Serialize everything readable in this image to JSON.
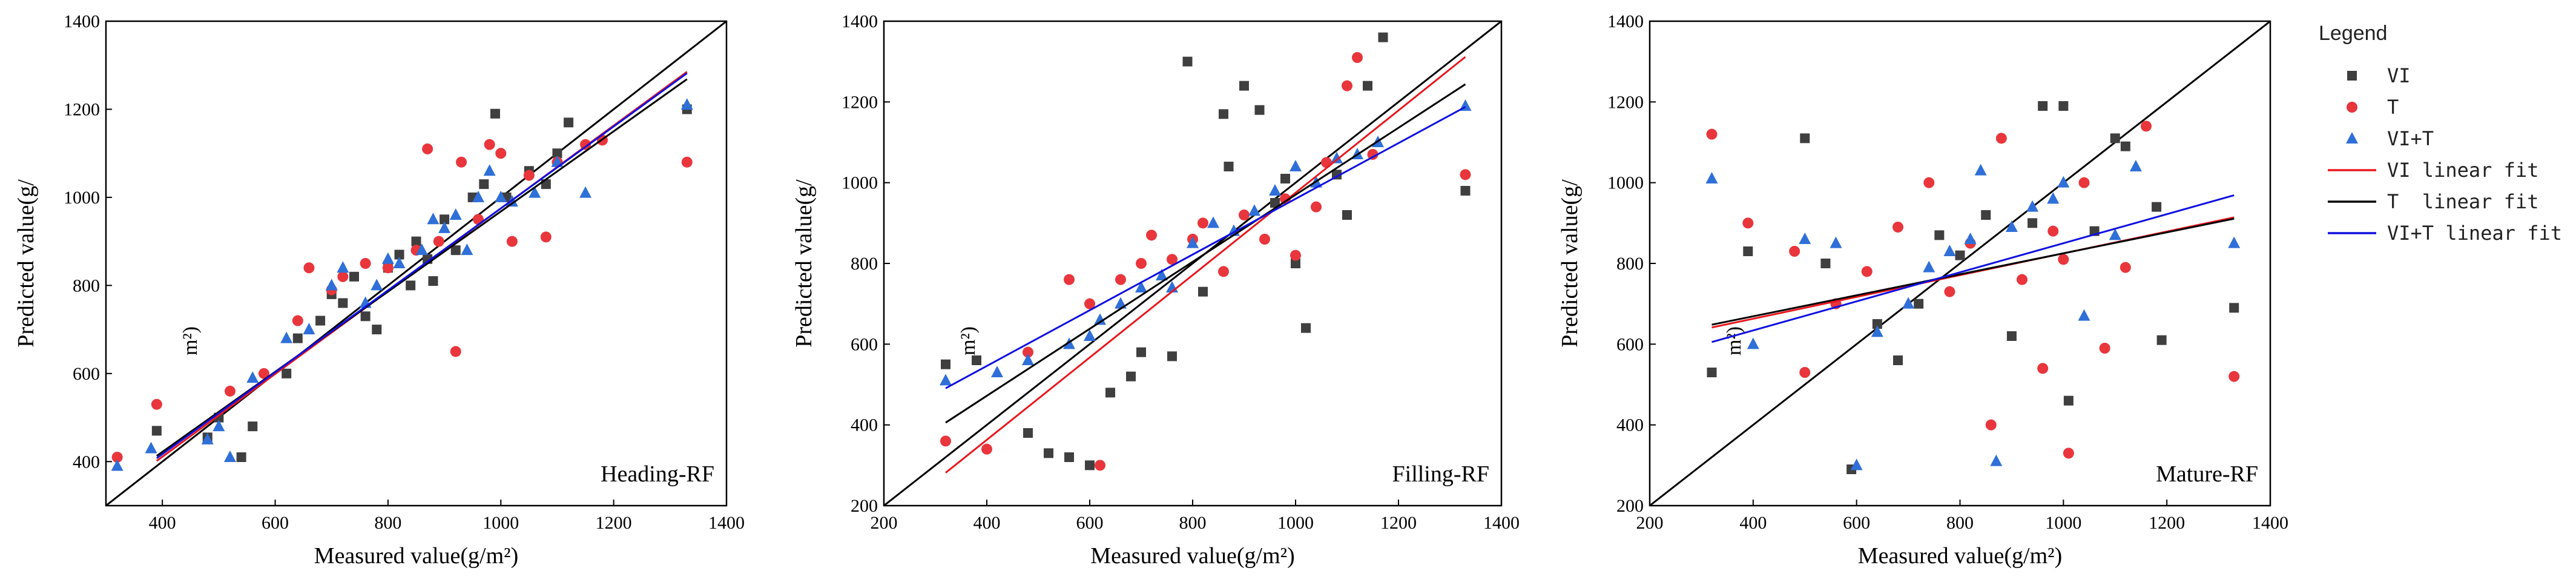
{
  "colors": {
    "VI": "#3f3f3f",
    "T": "#e8363c",
    "VIT": "#2f6fd8",
    "VI_fit": "#e8181e",
    "T_fit": "#000000",
    "VIT_fit": "#1010e0",
    "identity": "#000000"
  },
  "legend": {
    "title": "Legend",
    "items": [
      {
        "label": "VI",
        "kind": "square",
        "color": "#3f3f3f"
      },
      {
        "label": "T",
        "kind": "circle",
        "color": "#e8363c"
      },
      {
        "label": "VI+T",
        "kind": "triangle",
        "color": "#2f6fd8"
      },
      {
        "label": "VI linear fit",
        "kind": "line",
        "color": "#e8181e"
      },
      {
        "label": "T  linear fit",
        "kind": "line",
        "color": "#000000"
      },
      {
        "label": "VI+T linear fit",
        "kind": "line",
        "color": "#1010e0"
      }
    ]
  },
  "chart_data": [
    {
      "type": "scatter",
      "title": "Heading-RF",
      "xlabel": "Measured value(g/m²)",
      "ylabel": "Predicted value(g/",
      "y_annotation": "m²)",
      "xlim": [
        300,
        1400
      ],
      "ylim": [
        300,
        1400
      ],
      "xticks": [
        400,
        600,
        800,
        1000,
        1200,
        1400
      ],
      "yticks": [
        400,
        600,
        800,
        1000,
        1200,
        1400
      ],
      "identity_line": true,
      "fits": {
        "VI": [
          35,
          0.94
        ],
        "T": [
          58,
          0.91
        ],
        "VIT": [
          45,
          0.93
        ]
      },
      "series": [
        {
          "name": "VI",
          "points": [
            [
              390,
              470
            ],
            [
              480,
              455
            ],
            [
              500,
              500
            ],
            [
              540,
              410
            ],
            [
              560,
              480
            ],
            [
              620,
              600
            ],
            [
              640,
              680
            ],
            [
              680,
              720
            ],
            [
              700,
              780
            ],
            [
              720,
              760
            ],
            [
              740,
              820
            ],
            [
              760,
              730
            ],
            [
              780,
              700
            ],
            [
              800,
              840
            ],
            [
              820,
              870
            ],
            [
              840,
              800
            ],
            [
              850,
              900
            ],
            [
              870,
              860
            ],
            [
              880,
              810
            ],
            [
              900,
              950
            ],
            [
              920,
              880
            ],
            [
              950,
              1000
            ],
            [
              970,
              1030
            ],
            [
              990,
              1190
            ],
            [
              1010,
              1000
            ],
            [
              1050,
              1060
            ],
            [
              1080,
              1030
            ],
            [
              1100,
              1100
            ],
            [
              1120,
              1170
            ],
            [
              1330,
              1200
            ]
          ]
        },
        {
          "name": "T",
          "points": [
            [
              320,
              410
            ],
            [
              390,
              530
            ],
            [
              520,
              560
            ],
            [
              580,
              600
            ],
            [
              640,
              720
            ],
            [
              660,
              840
            ],
            [
              700,
              790
            ],
            [
              720,
              820
            ],
            [
              760,
              850
            ],
            [
              800,
              840
            ],
            [
              850,
              880
            ],
            [
              870,
              1110
            ],
            [
              890,
              900
            ],
            [
              920,
              650
            ],
            [
              930,
              1080
            ],
            [
              960,
              950
            ],
            [
              980,
              1120
            ],
            [
              1000,
              1100
            ],
            [
              1020,
              900
            ],
            [
              1050,
              1050
            ],
            [
              1080,
              910
            ],
            [
              1100,
              1080
            ],
            [
              1150,
              1120
            ],
            [
              1180,
              1130
            ],
            [
              1330,
              1080
            ]
          ]
        },
        {
          "name": "VIT",
          "points": [
            [
              320,
              390
            ],
            [
              380,
              430
            ],
            [
              480,
              450
            ],
            [
              500,
              480
            ],
            [
              520,
              410
            ],
            [
              560,
              590
            ],
            [
              620,
              680
            ],
            [
              660,
              700
            ],
            [
              700,
              800
            ],
            [
              720,
              840
            ],
            [
              760,
              760
            ],
            [
              780,
              800
            ],
            [
              800,
              860
            ],
            [
              820,
              850
            ],
            [
              860,
              880
            ],
            [
              880,
              950
            ],
            [
              900,
              930
            ],
            [
              920,
              960
            ],
            [
              940,
              880
            ],
            [
              960,
              1000
            ],
            [
              980,
              1060
            ],
            [
              1000,
              1000
            ],
            [
              1020,
              990
            ],
            [
              1060,
              1010
            ],
            [
              1100,
              1080
            ],
            [
              1150,
              1010
            ],
            [
              1330,
              1210
            ]
          ]
        }
      ]
    },
    {
      "type": "scatter",
      "title": "Filling-RF",
      "xlabel": "Measured value(g/m²)",
      "ylabel": "Predicted value(g/",
      "y_annotation": "m²)",
      "xlim": [
        200,
        1400
      ],
      "ylim": [
        200,
        1400
      ],
      "xticks": [
        200,
        400,
        600,
        800,
        1000,
        1200,
        1400
      ],
      "yticks": [
        200,
        400,
        600,
        800,
        1000,
        1200,
        1400
      ],
      "identity_line": true,
      "fits": {
        "VI": [
          -45,
          1.02
        ],
        "T": [
          140,
          0.83
        ],
        "VIT": [
          270,
          0.69
        ]
      },
      "series": [
        {
          "name": "VI",
          "points": [
            [
              320,
              550
            ],
            [
              380,
              560
            ],
            [
              480,
              380
            ],
            [
              520,
              330
            ],
            [
              560,
              320
            ],
            [
              600,
              300
            ],
            [
              640,
              480
            ],
            [
              680,
              520
            ],
            [
              700,
              580
            ],
            [
              760,
              570
            ],
            [
              790,
              1300
            ],
            [
              820,
              730
            ],
            [
              860,
              1170
            ],
            [
              870,
              1040
            ],
            [
              900,
              1240
            ],
            [
              930,
              1180
            ],
            [
              960,
              950
            ],
            [
              980,
              1010
            ],
            [
              1000,
              800
            ],
            [
              1020,
              640
            ],
            [
              1080,
              1020
            ],
            [
              1100,
              920
            ],
            [
              1140,
              1240
            ],
            [
              1170,
              1360
            ],
            [
              1330,
              980
            ]
          ]
        },
        {
          "name": "T",
          "points": [
            [
              320,
              360
            ],
            [
              400,
              340
            ],
            [
              480,
              580
            ],
            [
              560,
              760
            ],
            [
              600,
              700
            ],
            [
              620,
              300
            ],
            [
              660,
              760
            ],
            [
              700,
              800
            ],
            [
              720,
              870
            ],
            [
              760,
              810
            ],
            [
              800,
              860
            ],
            [
              820,
              900
            ],
            [
              860,
              780
            ],
            [
              900,
              920
            ],
            [
              940,
              860
            ],
            [
              980,
              960
            ],
            [
              1000,
              820
            ],
            [
              1040,
              940
            ],
            [
              1060,
              1050
            ],
            [
              1100,
              1240
            ],
            [
              1120,
              1310
            ],
            [
              1150,
              1070
            ],
            [
              1330,
              1020
            ]
          ]
        },
        {
          "name": "VIT",
          "points": [
            [
              320,
              510
            ],
            [
              420,
              530
            ],
            [
              480,
              560
            ],
            [
              560,
              600
            ],
            [
              600,
              620
            ],
            [
              620,
              660
            ],
            [
              660,
              700
            ],
            [
              700,
              740
            ],
            [
              740,
              770
            ],
            [
              760,
              740
            ],
            [
              800,
              850
            ],
            [
              840,
              900
            ],
            [
              880,
              880
            ],
            [
              920,
              930
            ],
            [
              960,
              980
            ],
            [
              1000,
              1040
            ],
            [
              1040,
              1000
            ],
            [
              1080,
              1060
            ],
            [
              1120,
              1070
            ],
            [
              1160,
              1100
            ],
            [
              1330,
              1190
            ]
          ]
        }
      ]
    },
    {
      "type": "scatter",
      "title": "Mature-RF",
      "xlabel": "Measured value(g/m²)",
      "ylabel": "Predicted value(g/",
      "y_annotation": "m²)",
      "xlim": [
        200,
        1400
      ],
      "ylim": [
        200,
        1400
      ],
      "xticks": [
        200,
        400,
        600,
        800,
        1000,
        1200,
        1400
      ],
      "yticks": [
        200,
        400,
        600,
        800,
        1000,
        1200,
        1400
      ],
      "identity_line": true,
      "fits": {
        "VI": [
          555,
          0.27
        ],
        "T": [
          565,
          0.26
        ],
        "VIT": [
          490,
          0.36
        ]
      },
      "series": [
        {
          "name": "VI",
          "points": [
            [
              320,
              530
            ],
            [
              390,
              830
            ],
            [
              500,
              1110
            ],
            [
              540,
              800
            ],
            [
              590,
              290
            ],
            [
              640,
              650
            ],
            [
              680,
              560
            ],
            [
              720,
              700
            ],
            [
              760,
              870
            ],
            [
              800,
              820
            ],
            [
              850,
              920
            ],
            [
              900,
              620
            ],
            [
              940,
              900
            ],
            [
              960,
              1190
            ],
            [
              1000,
              1190
            ],
            [
              1010,
              460
            ],
            [
              1060,
              880
            ],
            [
              1100,
              1110
            ],
            [
              1120,
              1090
            ],
            [
              1180,
              940
            ],
            [
              1190,
              610
            ],
            [
              1330,
              690
            ]
          ]
        },
        {
          "name": "T",
          "points": [
            [
              320,
              1120
            ],
            [
              390,
              900
            ],
            [
              480,
              830
            ],
            [
              500,
              530
            ],
            [
              560,
              700
            ],
            [
              620,
              780
            ],
            [
              680,
              890
            ],
            [
              740,
              1000
            ],
            [
              780,
              730
            ],
            [
              820,
              850
            ],
            [
              860,
              400
            ],
            [
              880,
              1110
            ],
            [
              920,
              760
            ],
            [
              960,
              540
            ],
            [
              980,
              880
            ],
            [
              1000,
              810
            ],
            [
              1010,
              330
            ],
            [
              1040,
              1000
            ],
            [
              1080,
              590
            ],
            [
              1120,
              790
            ],
            [
              1160,
              1140
            ],
            [
              1330,
              520
            ]
          ]
        },
        {
          "name": "VIT",
          "points": [
            [
              320,
              1010
            ],
            [
              400,
              600
            ],
            [
              500,
              860
            ],
            [
              560,
              850
            ],
            [
              600,
              300
            ],
            [
              640,
              630
            ],
            [
              700,
              700
            ],
            [
              740,
              790
            ],
            [
              780,
              830
            ],
            [
              820,
              860
            ],
            [
              840,
              1030
            ],
            [
              870,
              310
            ],
            [
              900,
              890
            ],
            [
              940,
              940
            ],
            [
              980,
              960
            ],
            [
              1000,
              1000
            ],
            [
              1040,
              670
            ],
            [
              1100,
              870
            ],
            [
              1140,
              1040
            ],
            [
              1330,
              850
            ]
          ]
        }
      ]
    }
  ]
}
